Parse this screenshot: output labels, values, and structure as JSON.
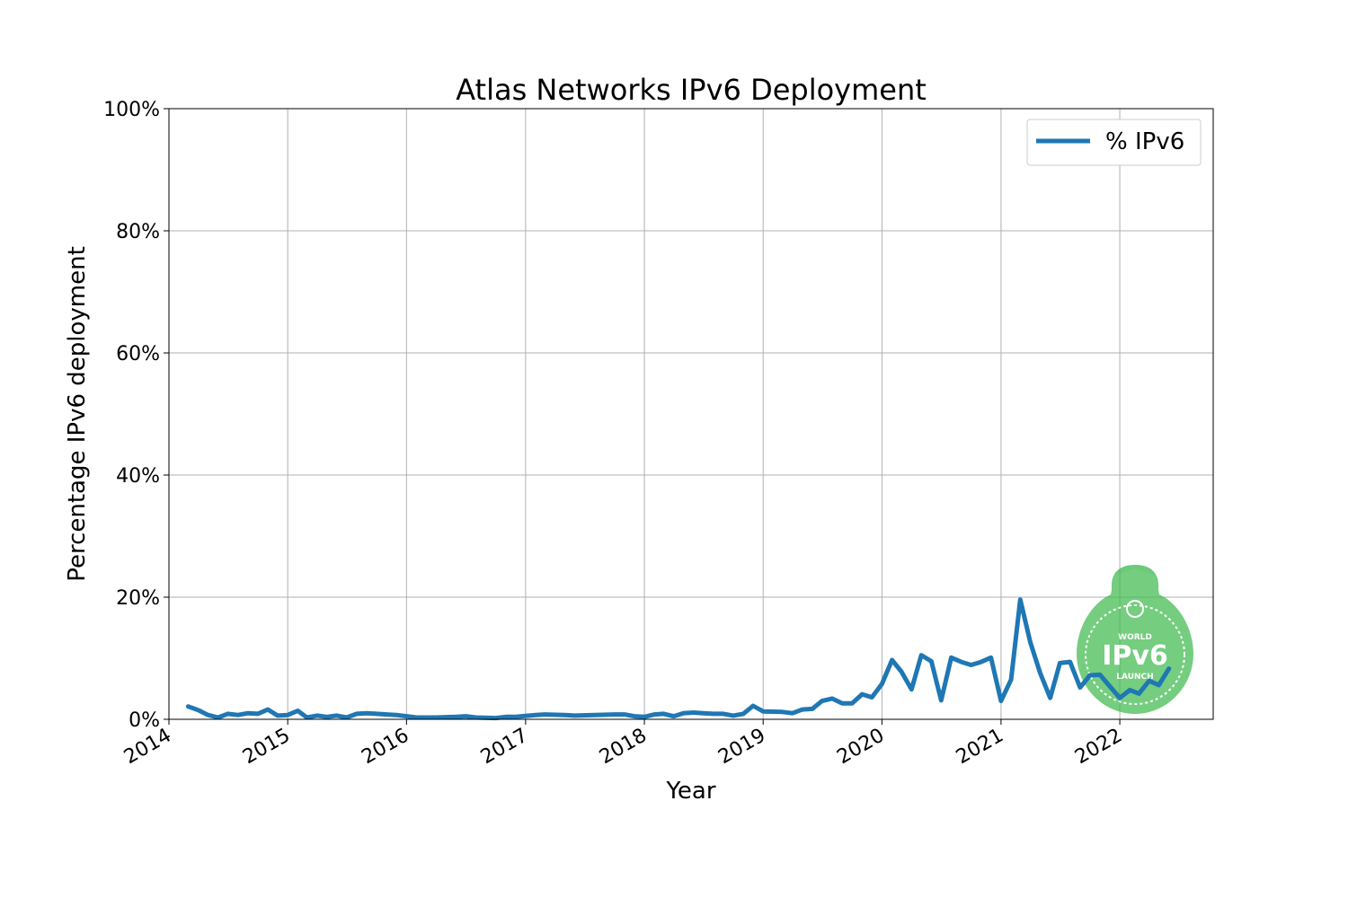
{
  "chart_data": {
    "type": "line",
    "title": "Atlas Networks IPv6 Deployment",
    "xlabel": "Year",
    "ylabel": "Percentage IPv6 deployment",
    "xlim": [
      "2014-01-01",
      "2022-10-15"
    ],
    "ylim": [
      0,
      100
    ],
    "x_ticks": [
      "2014",
      "2015",
      "2016",
      "2017",
      "2018",
      "2019",
      "2020",
      "2021",
      "2022"
    ],
    "y_ticks": [
      "0%",
      "20%",
      "40%",
      "60%",
      "80%",
      "100%"
    ],
    "grid": true,
    "legend_position": "top-right",
    "series": [
      {
        "name": "% IPv6",
        "color": "#1f77b4",
        "points": [
          [
            "2014-03-01",
            2.1
          ],
          [
            "2014-04-01",
            1.5
          ],
          [
            "2014-05-01",
            0.7
          ],
          [
            "2014-06-01",
            0.3
          ],
          [
            "2014-07-01",
            0.9
          ],
          [
            "2014-08-01",
            0.7
          ],
          [
            "2014-09-01",
            1.0
          ],
          [
            "2014-10-01",
            0.9
          ],
          [
            "2014-11-01",
            1.6
          ],
          [
            "2014-12-01",
            0.6
          ],
          [
            "2015-01-01",
            0.7
          ],
          [
            "2015-02-01",
            1.4
          ],
          [
            "2015-03-01",
            0.3
          ],
          [
            "2015-04-01",
            0.6
          ],
          [
            "2015-05-01",
            0.4
          ],
          [
            "2015-06-01",
            0.6
          ],
          [
            "2015-07-01",
            0.3
          ],
          [
            "2015-08-01",
            0.9
          ],
          [
            "2015-09-01",
            1.0
          ],
          [
            "2015-10-01",
            0.9
          ],
          [
            "2015-11-01",
            0.8
          ],
          [
            "2015-12-01",
            0.7
          ],
          [
            "2016-01-01",
            0.5
          ],
          [
            "2016-02-01",
            0.3
          ],
          [
            "2016-04-01",
            0.3
          ],
          [
            "2016-06-01",
            0.4
          ],
          [
            "2016-07-01",
            0.5
          ],
          [
            "2016-08-01",
            0.3
          ],
          [
            "2016-10-01",
            0.2
          ],
          [
            "2016-11-01",
            0.4
          ],
          [
            "2016-12-01",
            0.4
          ],
          [
            "2017-02-01",
            0.7
          ],
          [
            "2017-03-01",
            0.8
          ],
          [
            "2017-05-01",
            0.7
          ],
          [
            "2017-06-01",
            0.6
          ],
          [
            "2017-08-01",
            0.7
          ],
          [
            "2017-10-01",
            0.8
          ],
          [
            "2017-11-01",
            0.8
          ],
          [
            "2017-12-01",
            0.5
          ],
          [
            "2018-01-01",
            0.4
          ],
          [
            "2018-02-01",
            0.8
          ],
          [
            "2018-03-01",
            0.9
          ],
          [
            "2018-04-01",
            0.5
          ],
          [
            "2018-05-01",
            1.0
          ],
          [
            "2018-06-01",
            1.1
          ],
          [
            "2018-07-01",
            1.0
          ],
          [
            "2018-08-01",
            0.9
          ],
          [
            "2018-09-01",
            0.9
          ],
          [
            "2018-10-01",
            0.6
          ],
          [
            "2018-11-01",
            0.9
          ],
          [
            "2018-12-01",
            2.2
          ],
          [
            "2019-01-01",
            1.3
          ],
          [
            "2019-03-01",
            1.2
          ],
          [
            "2019-04-01",
            1.0
          ],
          [
            "2019-05-01",
            1.6
          ],
          [
            "2019-06-01",
            1.7
          ],
          [
            "2019-07-01",
            3.0
          ],
          [
            "2019-08-01",
            3.4
          ],
          [
            "2019-09-01",
            2.6
          ],
          [
            "2019-10-01",
            2.6
          ],
          [
            "2019-11-01",
            4.1
          ],
          [
            "2019-12-01",
            3.6
          ],
          [
            "2020-01-01",
            5.8
          ],
          [
            "2020-02-01",
            9.7
          ],
          [
            "2020-03-01",
            7.8
          ],
          [
            "2020-04-01",
            4.9
          ],
          [
            "2020-05-01",
            10.5
          ],
          [
            "2020-06-01",
            9.5
          ],
          [
            "2020-07-01",
            3.1
          ],
          [
            "2020-08-01",
            10.1
          ],
          [
            "2020-09-01",
            9.4
          ],
          [
            "2020-10-01",
            8.9
          ],
          [
            "2020-11-01",
            9.4
          ],
          [
            "2020-12-01",
            10.1
          ],
          [
            "2021-01-01",
            3.0
          ],
          [
            "2021-02-01",
            6.5
          ],
          [
            "2021-03-01",
            19.6
          ],
          [
            "2021-04-01",
            12.6
          ],
          [
            "2021-05-01",
            7.6
          ],
          [
            "2021-06-01",
            3.5
          ],
          [
            "2021-07-01",
            9.2
          ],
          [
            "2021-08-01",
            9.4
          ],
          [
            "2021-09-01",
            5.2
          ],
          [
            "2021-10-01",
            7.2
          ],
          [
            "2021-11-01",
            7.3
          ],
          [
            "2021-12-01",
            5.4
          ],
          [
            "2022-01-01",
            3.5
          ],
          [
            "2022-02-01",
            4.8
          ],
          [
            "2022-03-01",
            4.2
          ],
          [
            "2022-04-01",
            6.3
          ],
          [
            "2022-05-01",
            5.6
          ],
          [
            "2022-06-01",
            8.3
          ]
        ]
      }
    ]
  },
  "watermark": {
    "top_text": "WORLD",
    "main_text": "IPv6",
    "bottom_text": "LAUNCH",
    "color": "#3cb94a"
  }
}
